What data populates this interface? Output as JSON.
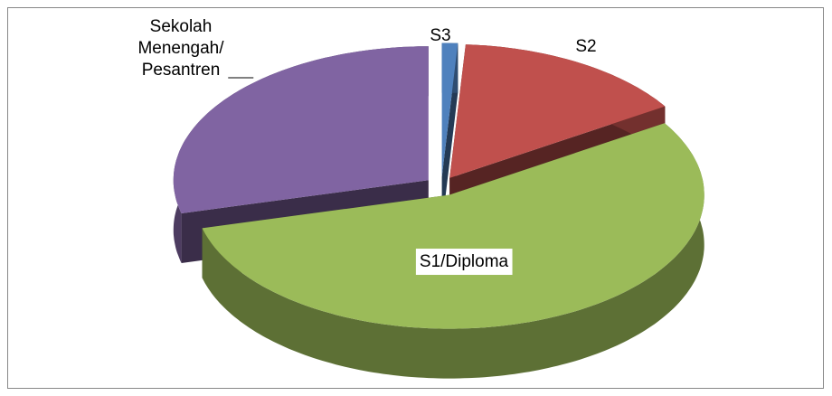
{
  "chart_data": {
    "type": "pie3d",
    "categories": [
      "S3",
      "S2",
      "S1/Diploma",
      "Sekolah Menengah/ Pesantren"
    ],
    "values": [
      1,
      15,
      55,
      29
    ],
    "colors": [
      "#4f81bd",
      "#c0504d",
      "#9bbb59",
      "#8064a2"
    ]
  }
}
